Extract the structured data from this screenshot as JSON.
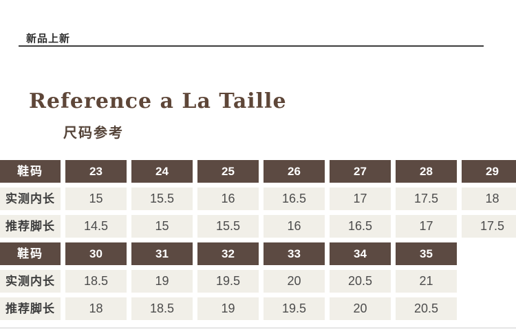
{
  "header": {
    "badge": "新品上新",
    "title": "Reference a La Taille",
    "subtitle": "尺码参考"
  },
  "size_table": {
    "header_label": "鞋码",
    "row_labels": [
      "实测内长",
      "推荐脚长"
    ],
    "blocks": [
      {
        "sizes": [
          "23",
          "24",
          "25",
          "26",
          "27",
          "28",
          "29"
        ],
        "inner_length": [
          "15",
          "15.5",
          "16",
          "16.5",
          "17",
          "17.5",
          "18"
        ],
        "foot_length": [
          "14.5",
          "15",
          "15.5",
          "16",
          "16.5",
          "17",
          "17.5"
        ]
      },
      {
        "sizes": [
          "30",
          "31",
          "32",
          "33",
          "34",
          "35"
        ],
        "inner_length": [
          "18.5",
          "19",
          "19.5",
          "20",
          "20.5",
          "21"
        ],
        "foot_length": [
          "18",
          "18.5",
          "19",
          "19.5",
          "20",
          "20.5"
        ]
      }
    ]
  },
  "colors": {
    "header_background": "#5c4a42",
    "cell_background": "#f1efe8",
    "header_text": "#ffffff",
    "cell_text": "#4c4c4c",
    "title_text": "#5e4638",
    "rule": "#3b3b3b",
    "page_background": "#ffffff"
  }
}
